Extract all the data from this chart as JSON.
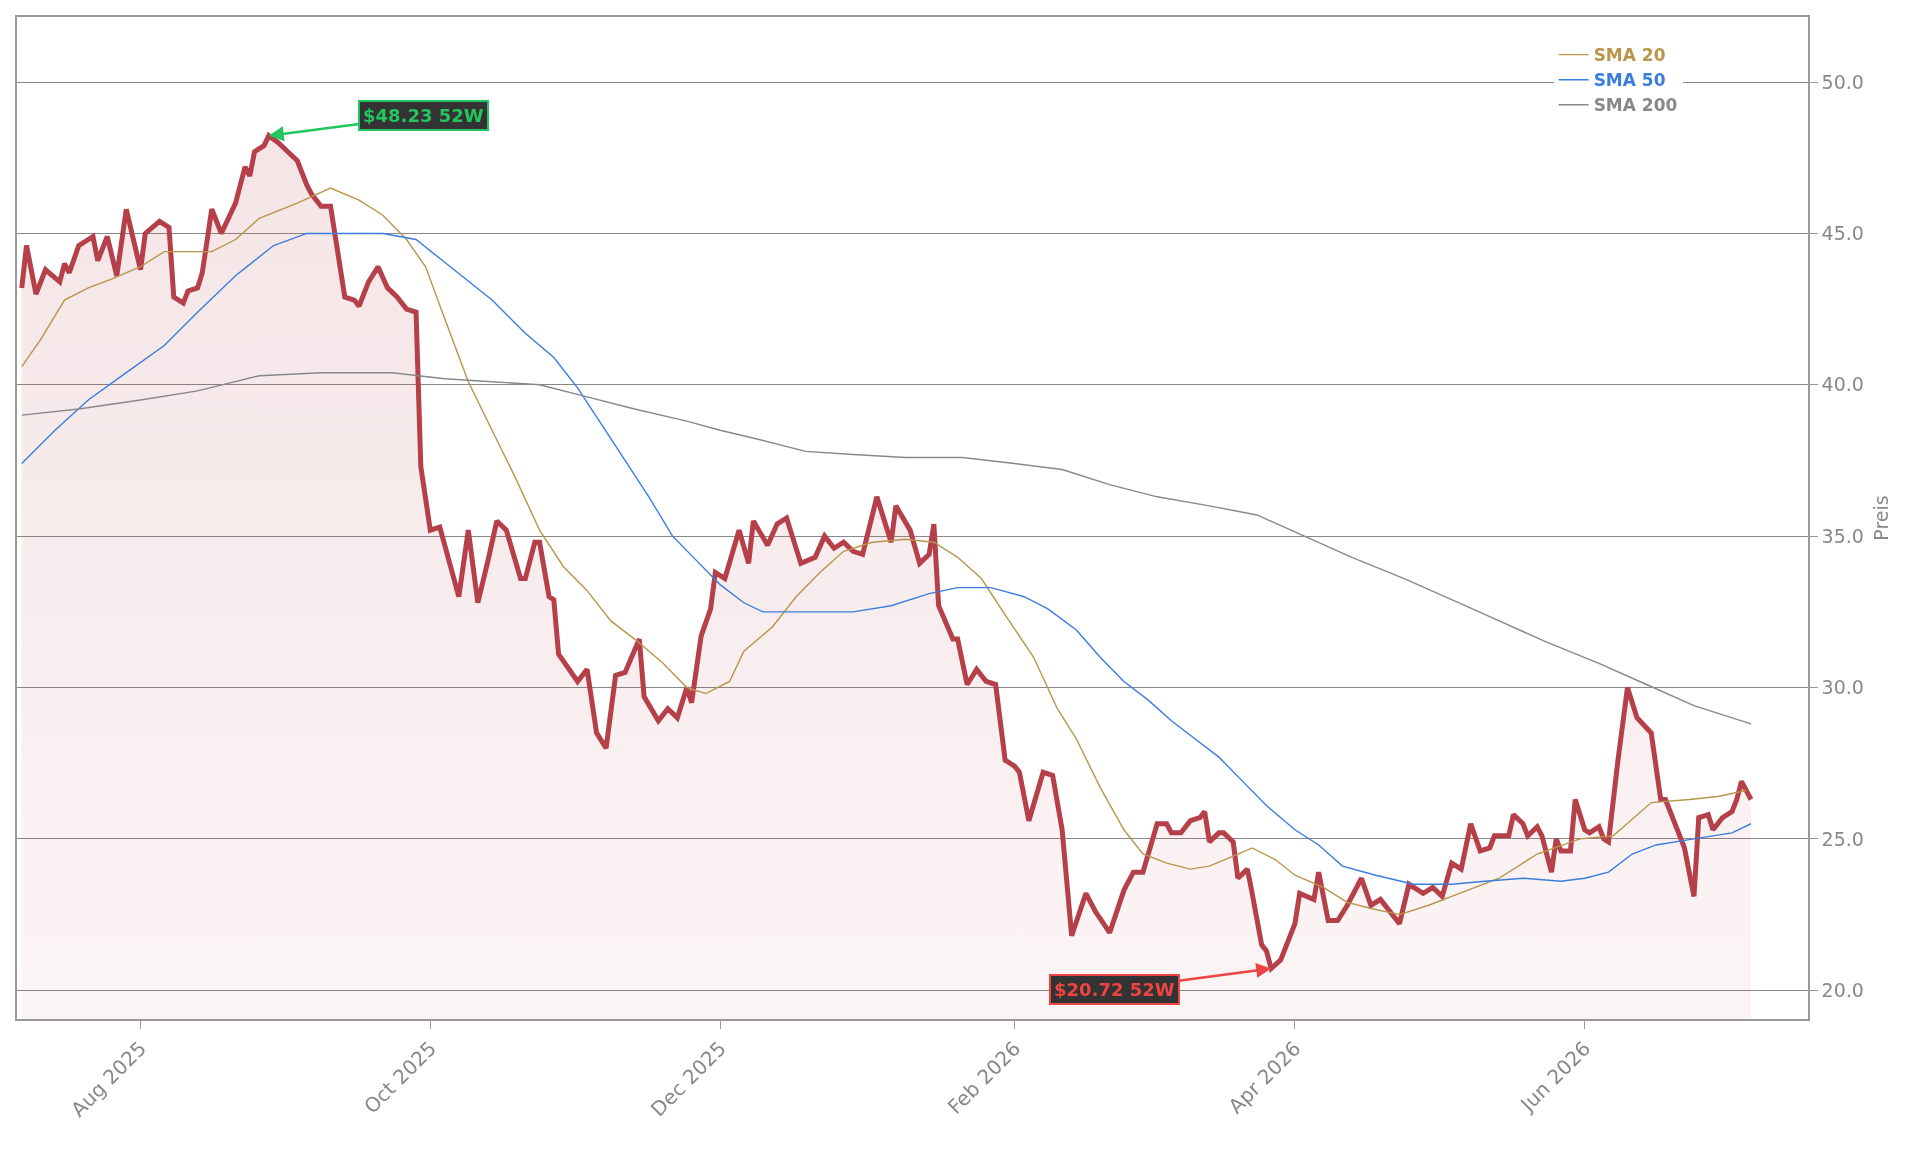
{
  "chart_data": {
    "type": "line",
    "ylabel": "Preis",
    "xlim": [
      "2025-07-06",
      "2026-07-18"
    ],
    "xticks": [
      {
        "value": "2025-08-01",
        "label": "Aug 2025"
      },
      {
        "value": "2025-10-01",
        "label": "Oct 2025"
      },
      {
        "value": "2025-12-01",
        "label": "Dec 2025"
      },
      {
        "value": "2026-02-01",
        "label": "Feb 2026"
      },
      {
        "value": "2026-04-01",
        "label": "Apr 2026"
      },
      {
        "value": "2026-06-01",
        "label": "Jun 2026"
      }
    ],
    "ylim": [
      19.05,
      52.15
    ],
    "yticks": [
      {
        "value": 20,
        "label": "20.0"
      },
      {
        "value": 25,
        "label": "25.0"
      },
      {
        "value": 30,
        "label": "30.0"
      },
      {
        "value": 35,
        "label": "35.0"
      },
      {
        "value": 40,
        "label": "40.0"
      },
      {
        "value": 45,
        "label": "45.0"
      },
      {
        "value": 50,
        "label": "50.0"
      }
    ],
    "grid": "y",
    "legend": "top right",
    "annotations": [
      {
        "text": "$48.23 52W",
        "x": "2025-08-28",
        "y": 48.23
      },
      {
        "text": "$20.72 52W",
        "x": "2026-03-27",
        "y": 20.72
      }
    ],
    "series": [
      {
        "type": "area",
        "color": "#b5404a",
        "x": [
          "2025-07-07",
          "2025-07-08",
          "2025-07-10",
          "2025-07-12",
          "2025-07-15",
          "2025-07-16",
          "2025-07-17",
          "2025-07-19",
          "2025-07-22",
          "2025-07-23",
          "2025-07-25",
          "2025-07-27",
          "2025-07-29",
          "2025-08-01",
          "2025-08-02",
          "2025-08-05",
          "2025-08-07",
          "2025-08-08",
          "2025-08-10",
          "2025-08-11",
          "2025-08-13",
          "2025-08-14",
          "2025-08-16",
          "2025-08-18",
          "2025-08-21",
          "2025-08-23",
          "2025-08-24",
          "2025-08-25",
          "2025-08-27",
          "2025-08-28",
          "2025-08-30",
          "2025-09-01",
          "2025-09-03",
          "2025-09-05",
          "2025-09-06",
          "2025-09-08",
          "2025-09-10",
          "2025-09-13",
          "2025-09-15",
          "2025-09-16",
          "2025-09-18",
          "2025-09-20",
          "2025-09-22",
          "2025-09-24",
          "2025-09-26",
          "2025-09-28",
          "2025-09-29",
          "2025-10-01",
          "2025-10-03",
          "2025-10-07",
          "2025-10-09",
          "2025-10-11",
          "2025-10-13",
          "2025-10-15",
          "2025-10-17",
          "2025-10-20",
          "2025-10-21",
          "2025-10-23",
          "2025-10-24",
          "2025-10-26",
          "2025-10-27",
          "2025-10-28",
          "2025-11-01",
          "2025-11-03",
          "2025-11-05",
          "2025-11-07",
          "2025-11-09",
          "2025-11-11",
          "2025-11-14",
          "2025-11-15",
          "2025-11-18",
          "2025-11-20",
          "2025-11-22",
          "2025-11-24",
          "2025-11-25",
          "2025-11-27",
          "2025-11-29",
          "2025-11-30",
          "2025-12-02",
          "2025-12-05",
          "2025-12-07",
          "2025-12-08",
          "2025-12-11",
          "2025-12-13",
          "2025-12-15",
          "2025-12-18",
          "2025-12-21",
          "2025-12-23",
          "2025-12-25",
          "2025-12-27",
          "2025-12-29",
          "2025-12-31",
          "2026-01-03",
          "2026-01-06",
          "2026-01-07",
          "2026-01-10",
          "2026-01-12",
          "2026-01-14",
          "2026-01-15",
          "2026-01-16",
          "2026-01-19",
          "2026-01-20",
          "2026-01-22",
          "2026-01-24",
          "2026-01-26",
          "2026-01-28",
          "2026-01-30",
          "2026-02-01",
          "2026-02-02",
          "2026-02-04",
          "2026-02-07",
          "2026-02-09",
          "2026-02-11",
          "2026-02-13",
          "2026-02-16",
          "2026-02-18",
          "2026-02-21",
          "2026-02-24",
          "2026-02-26",
          "2026-02-28",
          "2026-03-03",
          "2026-03-05",
          "2026-03-06",
          "2026-03-08",
          "2026-03-10",
          "2026-03-12",
          "2026-03-13",
          "2026-03-14",
          "2026-03-16",
          "2026-03-17",
          "2026-03-19",
          "2026-03-20",
          "2026-03-22",
          "2026-03-23",
          "2026-03-25",
          "2026-03-26",
          "2026-03-27",
          "2026-03-29",
          "2026-04-01",
          "2026-04-02",
          "2026-04-05",
          "2026-04-06",
          "2026-04-08",
          "2026-04-10",
          "2026-04-12",
          "2026-04-15",
          "2026-04-17",
          "2026-04-19",
          "2026-04-23",
          "2026-04-25",
          "2026-04-28",
          "2026-04-30",
          "2026-05-02",
          "2026-05-04",
          "2026-05-06",
          "2026-05-08",
          "2026-05-10",
          "2026-05-12",
          "2026-05-13",
          "2026-05-16",
          "2026-05-17",
          "2026-05-19",
          "2026-05-20",
          "2026-05-22",
          "2026-05-23",
          "2026-05-25",
          "2026-05-26",
          "2026-05-27",
          "2026-05-29",
          "2026-05-30",
          "2026-06-01",
          "2026-06-02",
          "2026-06-04",
          "2026-06-05",
          "2026-06-06",
          "2026-06-08",
          "2026-06-10",
          "2026-06-12",
          "2026-06-15",
          "2026-06-17",
          "2026-06-18",
          "2026-06-20",
          "2026-06-22",
          "2026-06-24",
          "2026-06-25",
          "2026-06-27",
          "2026-06-28",
          "2026-06-30",
          "2026-07-02",
          "2026-07-03",
          "2026-07-04",
          "2026-07-06"
        ],
        "values": [
          43.2,
          44.6,
          43.0,
          43.8,
          43.4,
          44.0,
          43.7,
          44.6,
          44.9,
          44.1,
          44.9,
          43.6,
          45.8,
          43.8,
          45.0,
          45.4,
          45.2,
          42.9,
          42.7,
          43.1,
          43.2,
          43.7,
          45.8,
          45.0,
          46.0,
          47.2,
          46.9,
          47.7,
          47.9,
          48.23,
          48.0,
          47.7,
          47.4,
          46.6,
          46.3,
          45.9,
          45.9,
          42.9,
          42.8,
          42.6,
          43.4,
          43.9,
          43.2,
          42.9,
          42.5,
          42.4,
          37.3,
          35.2,
          35.3,
          33.0,
          35.2,
          32.8,
          34.1,
          35.5,
          35.2,
          33.6,
          33.6,
          34.8,
          34.8,
          33.0,
          32.9,
          31.1,
          30.2,
          30.6,
          28.5,
          28.0,
          30.4,
          30.5,
          31.6,
          29.7,
          28.9,
          29.3,
          29.0,
          30.0,
          29.5,
          31.7,
          32.6,
          33.8,
          33.6,
          35.2,
          34.1,
          35.5,
          34.7,
          35.4,
          35.6,
          34.1,
          34.3,
          35.0,
          34.6,
          34.8,
          34.5,
          34.4,
          36.3,
          34.8,
          36.0,
          35.2,
          34.1,
          34.4,
          35.4,
          32.7,
          31.6,
          31.6,
          30.1,
          30.6,
          30.2,
          30.1,
          27.6,
          27.4,
          27.2,
          25.6,
          27.2,
          27.1,
          25.3,
          21.8,
          23.2,
          22.6,
          21.9,
          23.3,
          23.9,
          23.9,
          25.5,
          25.5,
          25.2,
          25.2,
          25.6,
          25.7,
          25.9,
          24.9,
          25.2,
          25.2,
          24.9,
          23.7,
          24.0,
          23.2,
          21.5,
          21.3,
          20.72,
          21.0,
          22.2,
          23.2,
          23.0,
          23.9,
          22.3,
          22.3,
          22.8,
          23.7,
          22.8,
          23.0,
          22.2,
          23.5,
          23.2,
          23.4,
          23.1,
          24.2,
          24.0,
          25.5,
          24.6,
          24.7,
          25.1,
          25.1,
          25.8,
          25.5,
          25.1,
          25.4,
          25.1,
          23.9,
          25.0,
          24.6,
          24.6,
          26.3,
          25.3,
          25.2,
          25.4,
          25.0,
          24.9,
          27.6,
          30.0,
          29.0,
          28.5,
          26.3,
          26.3,
          25.5,
          24.7,
          23.1,
          25.7,
          25.8,
          25.3,
          25.7,
          25.9,
          26.3,
          26.9,
          26.3
        ]
      },
      {
        "name": "SMA 20",
        "color": "#b8954a",
        "x": [
          "2025-07-07",
          "2025-07-11",
          "2025-07-16",
          "2025-07-21",
          "2025-07-26",
          "2025-08-01",
          "2025-08-06",
          "2025-08-11",
          "2025-08-16",
          "2025-08-21",
          "2025-08-26",
          "2025-09-03",
          "2025-09-10",
          "2025-09-16",
          "2025-09-21",
          "2025-09-26",
          "2025-09-30",
          "2025-10-04",
          "2025-10-09",
          "2025-10-14",
          "2025-10-19",
          "2025-10-24",
          "2025-10-29",
          "2025-11-03",
          "2025-11-08",
          "2025-11-13",
          "2025-11-19",
          "2025-11-24",
          "2025-11-28",
          "2025-12-03",
          "2025-12-06",
          "2025-12-12",
          "2025-12-17",
          "2025-12-22",
          "2025-12-27",
          "2026-01-02",
          "2026-01-09",
          "2026-01-15",
          "2026-01-20",
          "2026-01-25",
          "2026-01-30",
          "2026-02-05",
          "2026-02-10",
          "2026-02-14",
          "2026-02-19",
          "2026-02-24",
          "2026-02-28",
          "2026-03-05",
          "2026-03-10",
          "2026-03-14",
          "2026-03-20",
          "2026-03-23",
          "2026-03-28",
          "2026-04-01",
          "2026-04-07",
          "2026-04-12",
          "2026-04-17",
          "2026-04-23",
          "2026-04-29",
          "2026-05-04",
          "2026-05-14",
          "2026-05-22",
          "2026-05-31",
          "2026-06-07",
          "2026-06-15",
          "2026-06-23",
          "2026-06-29",
          "2026-07-05"
        ],
        "values": [
          40.6,
          41.5,
          42.8,
          43.2,
          43.5,
          43.9,
          44.4,
          44.4,
          44.4,
          44.8,
          45.5,
          46.0,
          46.5,
          46.1,
          45.6,
          44.8,
          43.9,
          42.2,
          40.1,
          38.5,
          36.9,
          35.2,
          34.0,
          33.2,
          32.2,
          31.6,
          30.8,
          30.0,
          29.8,
          30.2,
          31.2,
          32.0,
          33.0,
          33.8,
          34.5,
          34.8,
          34.9,
          34.8,
          34.3,
          33.6,
          32.4,
          31.0,
          29.3,
          28.3,
          26.7,
          25.3,
          24.5,
          24.2,
          24.0,
          24.1,
          24.5,
          24.7,
          24.3,
          23.8,
          23.4,
          22.9,
          22.7,
          22.5,
          22.8,
          23.1,
          23.7,
          24.5,
          25.0,
          25.1,
          26.2,
          26.3,
          26.4,
          26.6
        ]
      },
      {
        "name": "SMA 50",
        "color": "#3b7ddd",
        "x": [
          "2025-07-07",
          "2025-07-14",
          "2025-07-21",
          "2025-07-29",
          "2025-08-06",
          "2025-08-13",
          "2025-08-21",
          "2025-08-29",
          "2025-09-05",
          "2025-09-13",
          "2025-09-21",
          "2025-09-28",
          "2025-10-06",
          "2025-10-14",
          "2025-10-21",
          "2025-10-27",
          "2025-11-01",
          "2025-11-06",
          "2025-11-11",
          "2025-11-16",
          "2025-11-21",
          "2025-11-26",
          "2025-12-01",
          "2025-12-06",
          "2025-12-10",
          "2025-12-19",
          "2025-12-29",
          "2026-01-06",
          "2026-01-14",
          "2026-01-20",
          "2026-01-27",
          "2026-02-03",
          "2026-02-08",
          "2026-02-14",
          "2026-02-19",
          "2026-02-24",
          "2026-03-01",
          "2026-03-06",
          "2026-03-11",
          "2026-03-16",
          "2026-03-21",
          "2026-03-26",
          "2026-04-01",
          "2026-04-06",
          "2026-04-11",
          "2026-04-18",
          "2026-04-26",
          "2026-05-04",
          "2026-05-11",
          "2026-05-19",
          "2026-05-27",
          "2026-06-01",
          "2026-06-06",
          "2026-06-11",
          "2026-06-16",
          "2026-06-24",
          "2026-07-02",
          "2026-07-06"
        ],
        "values": [
          37.4,
          38.5,
          39.5,
          40.4,
          41.3,
          42.4,
          43.6,
          44.6,
          45.0,
          45.0,
          45.0,
          44.8,
          43.8,
          42.8,
          41.7,
          40.9,
          39.9,
          38.7,
          37.5,
          36.3,
          35.0,
          34.2,
          33.4,
          32.8,
          32.5,
          32.5,
          32.5,
          32.7,
          33.1,
          33.3,
          33.3,
          33.0,
          32.6,
          31.9,
          31.0,
          30.2,
          29.6,
          28.9,
          28.3,
          27.7,
          26.9,
          26.1,
          25.3,
          24.8,
          24.1,
          23.8,
          23.5,
          23.5,
          23.6,
          23.7,
          23.6,
          23.7,
          23.9,
          24.5,
          24.8,
          25.0,
          25.2,
          25.5
        ]
      },
      {
        "name": "SMA 200",
        "color": "#888888",
        "x": [
          "2025-07-07",
          "2025-07-19",
          "2025-08-01",
          "2025-08-13",
          "2025-08-26",
          "2025-09-08",
          "2025-09-23",
          "2025-10-04",
          "2025-10-14",
          "2025-10-24",
          "2025-11-03",
          "2025-11-13",
          "2025-11-24",
          "2025-12-01",
          "2025-12-09",
          "2025-12-19",
          "2025-12-29",
          "2026-01-09",
          "2026-01-21",
          "2026-02-01",
          "2026-02-11",
          "2026-02-21",
          "2026-03-03",
          "2026-03-14",
          "2026-03-24",
          "2026-04-03",
          "2026-04-13",
          "2026-04-24",
          "2026-05-04",
          "2026-05-14",
          "2026-05-24",
          "2026-06-04",
          "2026-06-14",
          "2026-06-24",
          "2026-07-06"
        ],
        "values": [
          39.0,
          39.2,
          39.5,
          39.8,
          40.3,
          40.4,
          40.4,
          40.2,
          40.1,
          40.0,
          39.6,
          39.2,
          38.8,
          38.5,
          38.2,
          37.8,
          37.7,
          37.6,
          37.6,
          37.4,
          37.2,
          36.7,
          36.3,
          36.0,
          35.7,
          35.0,
          34.3,
          33.6,
          32.9,
          32.2,
          31.5,
          30.8,
          30.1,
          29.4,
          28.8
        ]
      }
    ]
  }
}
